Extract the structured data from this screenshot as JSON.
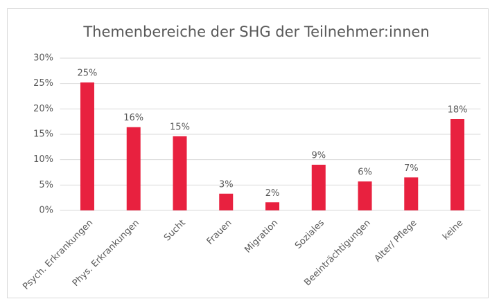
{
  "chart_data": {
    "type": "bar",
    "title": "Themenbereiche der SHG der Teilnehmer:innen",
    "categories": [
      "Psych. Erkrankungen",
      "Phys. Erkrankungen",
      "Sucht",
      "Frauen",
      "Migration",
      "Soziales",
      "Beeinträchtigungen",
      "Alter/ Pflege",
      "keine"
    ],
    "values": [
      25.2,
      16.4,
      14.6,
      3.3,
      1.6,
      9.0,
      5.7,
      6.5,
      18.0
    ],
    "value_labels": [
      "25%",
      "16%",
      "15%",
      "3%",
      "2%",
      "9%",
      "6%",
      "7%",
      "18%"
    ],
    "color": "#e8213f",
    "ylim": [
      0,
      30
    ],
    "yticks": [
      {
        "value": 0,
        "label": "0%"
      },
      {
        "value": 5,
        "label": "5%"
      },
      {
        "value": 10,
        "label": "10%"
      },
      {
        "value": 15,
        "label": "15%"
      },
      {
        "value": 20,
        "label": "20%"
      },
      {
        "value": 25,
        "label": "25%"
      },
      {
        "value": 30,
        "label": "30%"
      }
    ],
    "grid": true
  }
}
